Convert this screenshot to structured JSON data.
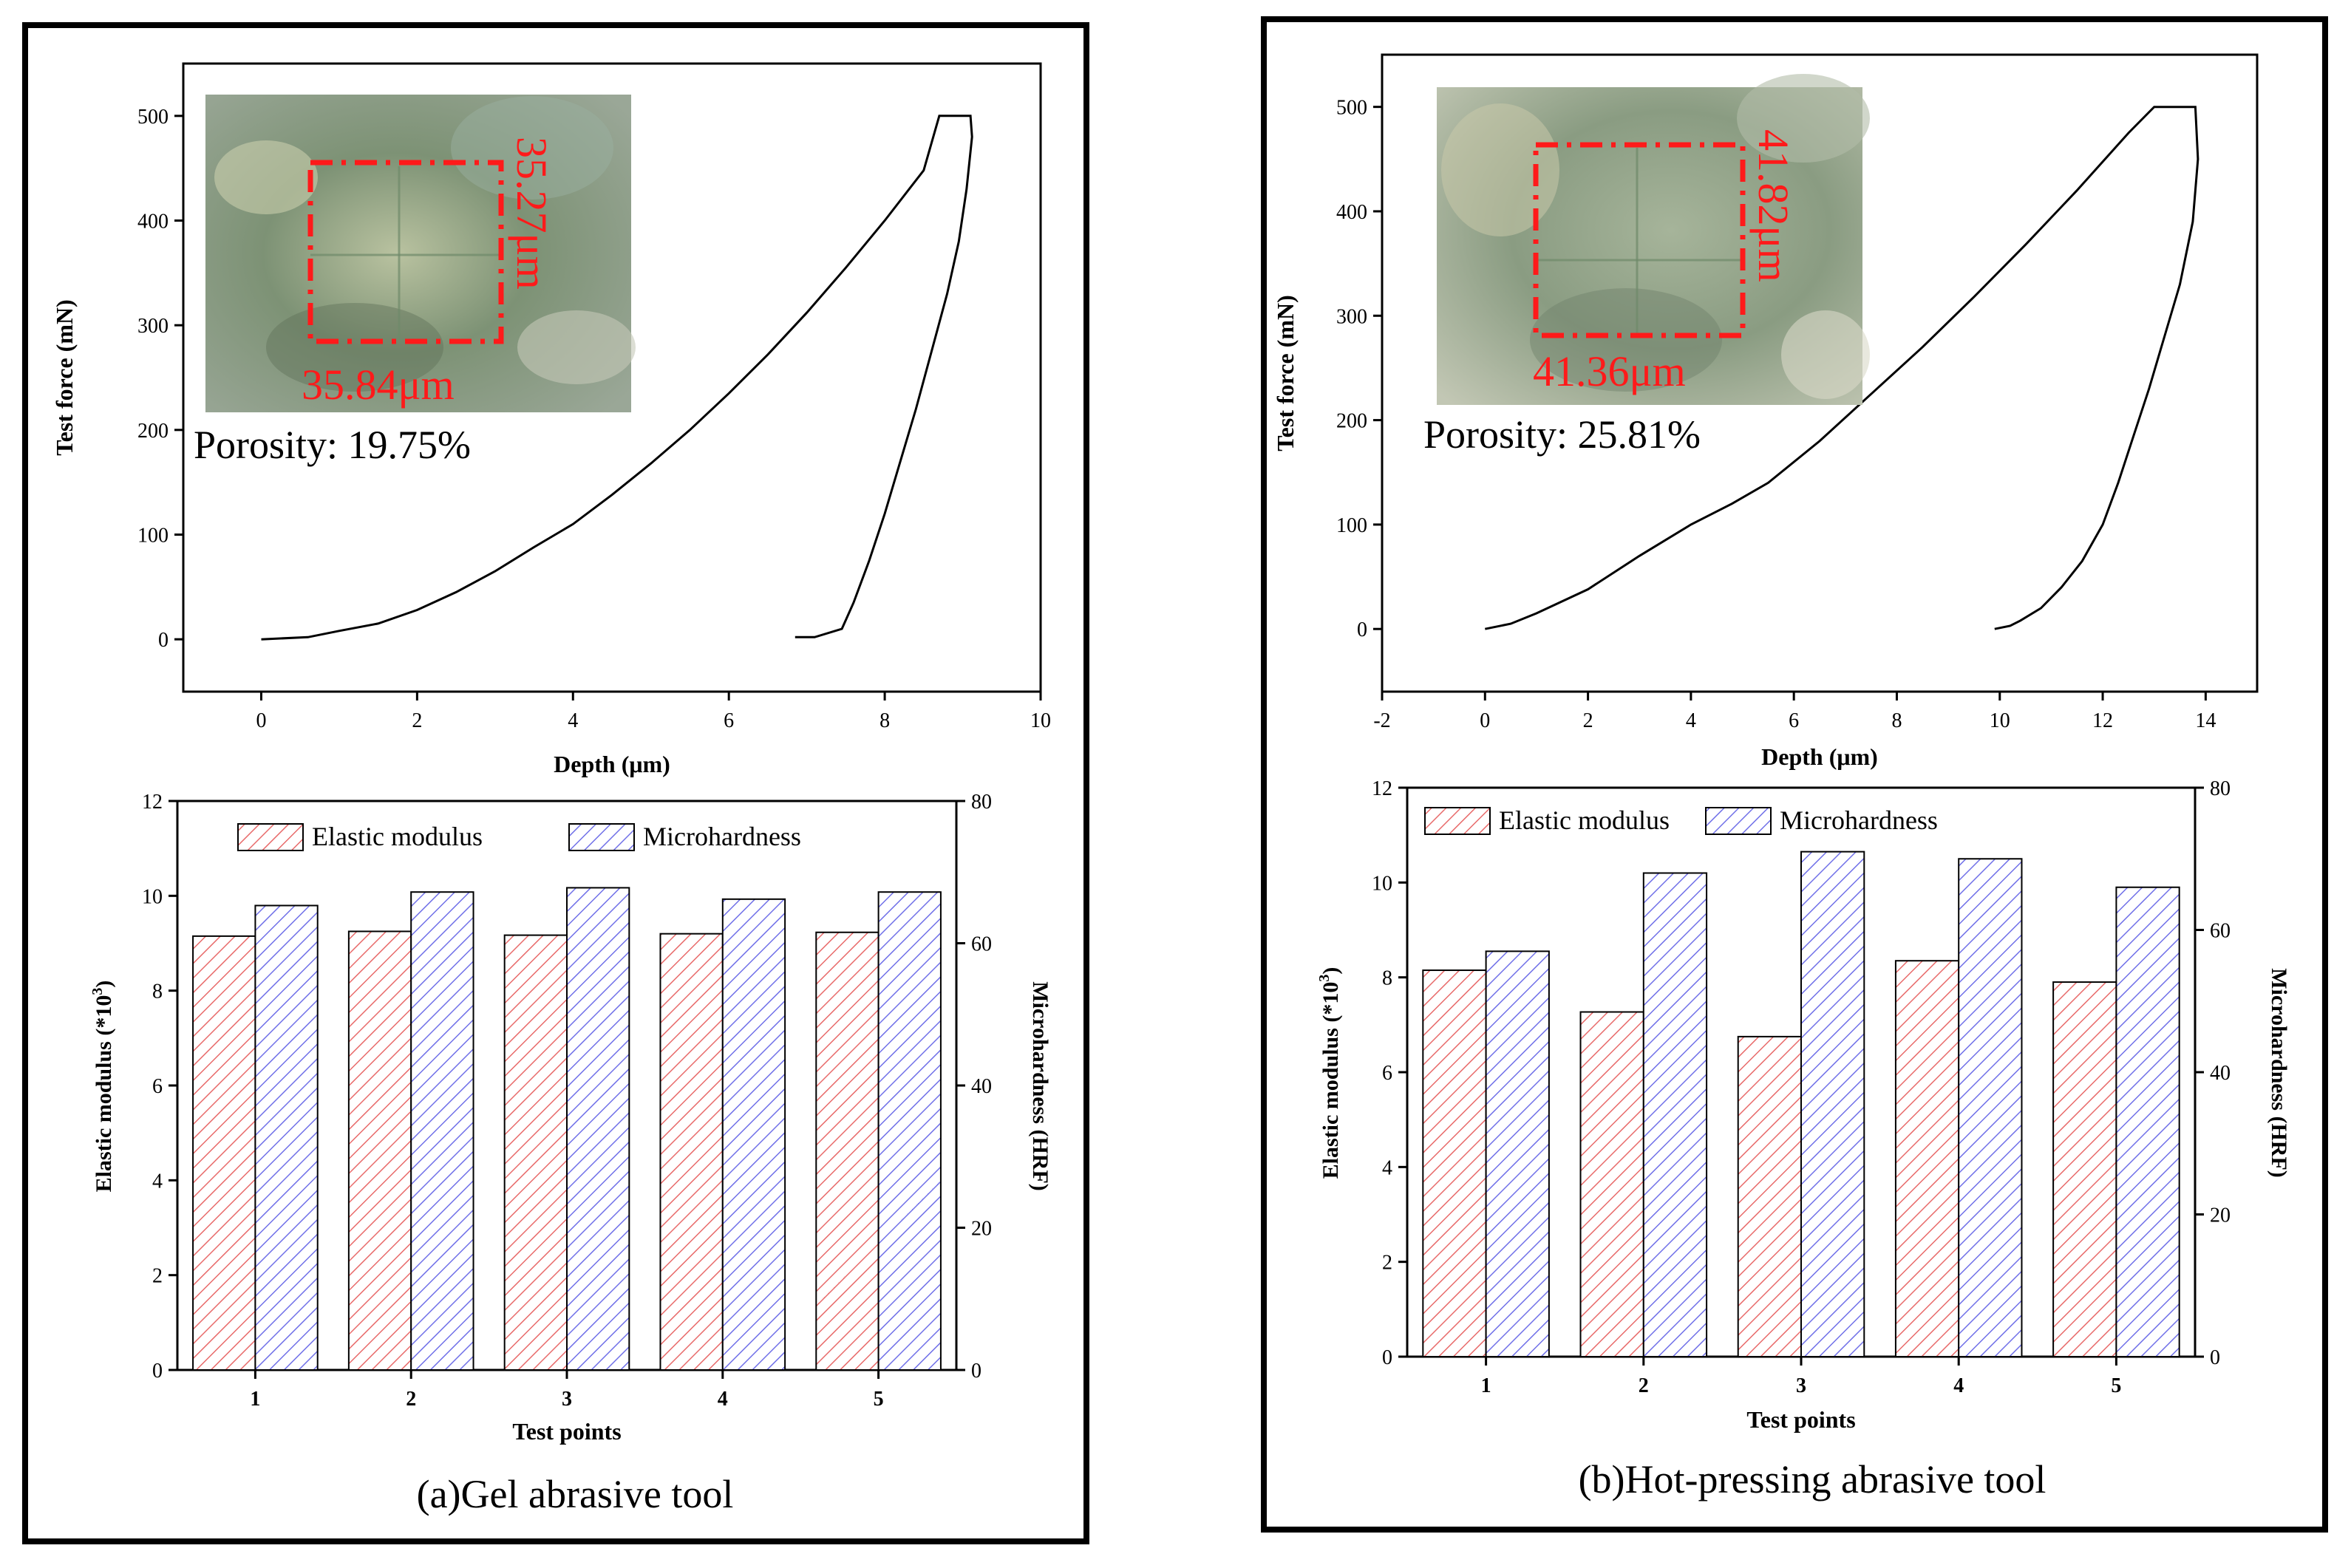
{
  "panels": [
    {
      "caption": "(a)Gel abrasive tool",
      "inset": {
        "dim_vertical": "35.27μm",
        "dim_horizontal": "35.84μm",
        "porosity": "Porosity: 19.75%"
      }
    },
    {
      "caption": "(b)Hot-pressing abrasive tool",
      "inset": {
        "dim_vertical": "41.82μm",
        "dim_horizontal": "41.36μm",
        "porosity": "Porosity: 25.81%"
      }
    }
  ],
  "colors": {
    "elastic_modulus": "#e86a6a",
    "microhardness": "#7070e8",
    "inset_annotation": "#ff1a1a",
    "curve": "#000000"
  },
  "chart_data": [
    {
      "panel": "a",
      "type": "line",
      "xlabel": "Depth (μm)",
      "ylabel": "Test force (mN)",
      "xlim": [
        -1,
        10
      ],
      "ylim": [
        -50,
        550
      ],
      "xticks": [
        0,
        2,
        4,
        6,
        8,
        10
      ],
      "yticks": [
        0,
        100,
        200,
        300,
        400,
        500
      ],
      "series": [
        {
          "x": [
            0,
            0.6,
            1.0,
            1.5,
            2.0,
            2.5,
            3.0,
            3.5,
            4.0,
            4.5,
            5.0,
            5.5,
            6.0,
            6.5,
            7.0,
            7.5,
            8.0,
            8.5,
            8.7,
            9.1,
            9.12,
            9.05,
            8.95,
            8.8,
            8.6,
            8.4,
            8.2,
            8.0,
            7.8,
            7.6,
            7.45,
            7.1,
            6.85
          ],
          "y": [
            0,
            2,
            8,
            15,
            28,
            45,
            65,
            88,
            110,
            138,
            168,
            200,
            235,
            272,
            312,
            355,
            400,
            448,
            500,
            500,
            480,
            430,
            380,
            330,
            275,
            220,
            170,
            120,
            75,
            35,
            10,
            2,
            2
          ]
        }
      ]
    },
    {
      "panel": "a",
      "type": "bar",
      "xlabel": "Test points",
      "ylabel": "Elastic modulus (*10^3)",
      "ylabel_right": "Microhardness (HRF)",
      "categories": [
        "1",
        "2",
        "3",
        "4",
        "5"
      ],
      "ylim": [
        0,
        12
      ],
      "ylim_right": [
        0,
        80
      ],
      "yticks": [
        0,
        2,
        4,
        6,
        8,
        10,
        12
      ],
      "yticks_right": [
        0,
        20,
        40,
        60,
        80
      ],
      "legend_position": "top",
      "series": [
        {
          "name": "Elastic modulus",
          "axis": "left",
          "values": [
            9.15,
            9.25,
            9.17,
            9.2,
            9.23
          ]
        },
        {
          "name": "Microhardness",
          "axis": "right",
          "values": [
            65.3,
            67.2,
            67.8,
            66.2,
            67.2
          ]
        }
      ]
    },
    {
      "panel": "b",
      "type": "line",
      "xlabel": "Depth (μm)",
      "ylabel": "Test force (mN)",
      "xlim": [
        -2,
        15
      ],
      "ylim": [
        -60,
        550
      ],
      "xticks": [
        -2,
        0,
        2,
        4,
        6,
        8,
        10,
        12,
        14
      ],
      "yticks": [
        0,
        100,
        200,
        300,
        400,
        500
      ],
      "series": [
        {
          "x": [
            0,
            0.5,
            1.0,
            2.0,
            3.0,
            4.0,
            4.8,
            5.5,
            6.5,
            7.5,
            8.5,
            9.5,
            10.5,
            11.5,
            12.5,
            13.0,
            13.8,
            13.85,
            13.75,
            13.5,
            13.2,
            12.9,
            12.6,
            12.3,
            12.0,
            11.6,
            11.2,
            10.8,
            10.4,
            10.2,
            9.9
          ],
          "y": [
            0,
            5,
            15,
            38,
            70,
            100,
            120,
            140,
            180,
            225,
            270,
            318,
            368,
            420,
            475,
            500,
            500,
            450,
            390,
            330,
            280,
            230,
            185,
            140,
            100,
            65,
            40,
            20,
            8,
            3,
            0
          ]
        }
      ]
    },
    {
      "panel": "b",
      "type": "bar",
      "xlabel": "Test points",
      "ylabel": "Elastic modulus (*10^3)",
      "ylabel_right": "Microhardness (HRF)",
      "categories": [
        "1",
        "2",
        "3",
        "4",
        "5"
      ],
      "ylim": [
        0,
        12
      ],
      "ylim_right": [
        0,
        80
      ],
      "yticks": [
        0,
        2,
        4,
        6,
        8,
        10,
        12
      ],
      "yticks_right": [
        0,
        20,
        40,
        60,
        80
      ],
      "legend_position": "top",
      "series": [
        {
          "name": "Elastic modulus",
          "axis": "left",
          "values": [
            8.15,
            7.27,
            6.75,
            8.35,
            7.9
          ]
        },
        {
          "name": "Microhardness",
          "axis": "right",
          "values": [
            57,
            68,
            71,
            70,
            66
          ]
        }
      ]
    }
  ]
}
